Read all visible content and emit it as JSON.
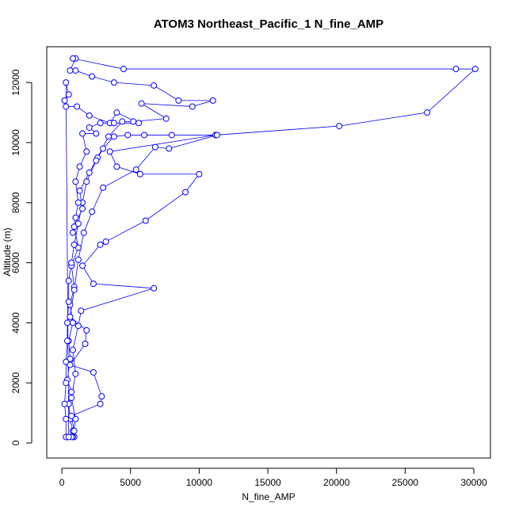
{
  "chart_data": {
    "type": "line",
    "marker": "circle",
    "title": "ATOM3 Northeast_Pacific_1 N_fine_AMP",
    "x_label": "N_fine_AMP",
    "y_label": "Altitude (m)",
    "xlim": [
      -1100,
      31210
    ],
    "ylim": [
      -500,
      13190
    ],
    "xticks": [
      0,
      5000,
      10000,
      15000,
      20000,
      25000,
      30000
    ],
    "yticks": [
      0,
      2000,
      4000,
      6000,
      8000,
      10000,
      12000
    ],
    "x": [
      400,
      900,
      800,
      600,
      500,
      700,
      400,
      600,
      500,
      800,
      600,
      900,
      700,
      1200,
      900,
      1500,
      1300,
      2000,
      2600,
      3400,
      4400,
      5200,
      7600,
      5800,
      9500,
      11000,
      8500,
      6700,
      3800,
      2200,
      1000,
      600,
      1000,
      800,
      4500,
      28700,
      30100,
      26600,
      20200,
      11200,
      8000,
      6000,
      4800,
      3800,
      3000,
      2500,
      1800,
      1500,
      1200,
      900,
      700,
      500,
      500,
      400,
      400,
      300,
      300,
      200,
      300,
      300,
      800,
      1000,
      700,
      1000,
      800,
      1200,
      1400,
      6700,
      2300,
      1500,
      2800,
      3200,
      6100,
      9000,
      10000,
      5700,
      4000,
      3500,
      11200,
      11300,
      7800,
      6800,
      5400,
      3000,
      2200,
      1600,
      1200,
      900,
      600,
      1800,
      1700,
      600,
      2300,
      2900,
      2800,
      700,
      900,
      700,
      500,
      300,
      500,
      200,
      300,
      1100,
      2000,
      3500,
      4000,
      5600,
      3800,
      2800,
      2000,
      2500,
      1500,
      1800,
      1300,
      1000,
      1200,
      1000,
      800
    ],
    "series": [
      {
        "color": "#0000ff",
        "values": [
          200,
          200,
          400,
          800,
          1300,
          1700,
          2100,
          2800,
          3400,
          4000,
          4600,
          5200,
          5900,
          6500,
          7200,
          7800,
          8400,
          9000,
          9500,
          10200,
          10700,
          10700,
          10800,
          11300,
          11200,
          11400,
          11400,
          11900,
          12000,
          12200,
          12400,
          12400,
          12800,
          12800,
          12450,
          12450,
          12450,
          11000,
          10550,
          10250,
          10250,
          10250,
          10250,
          10200,
          9800,
          9400,
          8700,
          8000,
          7300,
          6600,
          6000,
          5400,
          4700,
          4000,
          3400,
          2700,
          2000,
          1300,
          800,
          200,
          200,
          800,
          1500,
          2300,
          3100,
          3900,
          4400,
          5150,
          5300,
          5900,
          6600,
          6700,
          7400,
          8350,
          8950,
          8950,
          9200,
          9700,
          10250,
          10250,
          9800,
          9850,
          9100,
          8500,
          7700,
          7000,
          6100,
          5100,
          4200,
          3750,
          3300,
          2600,
          2350,
          1550,
          1300,
          900,
          400,
          200,
          200,
          12000,
          11600,
          11400,
          11200,
          11200,
          10900,
          10650,
          11000,
          10650,
          10650,
          10650,
          10500,
          10300,
          10300,
          9700,
          9200,
          8700,
          8000,
          7500,
          7000
        ]
      }
    ]
  }
}
